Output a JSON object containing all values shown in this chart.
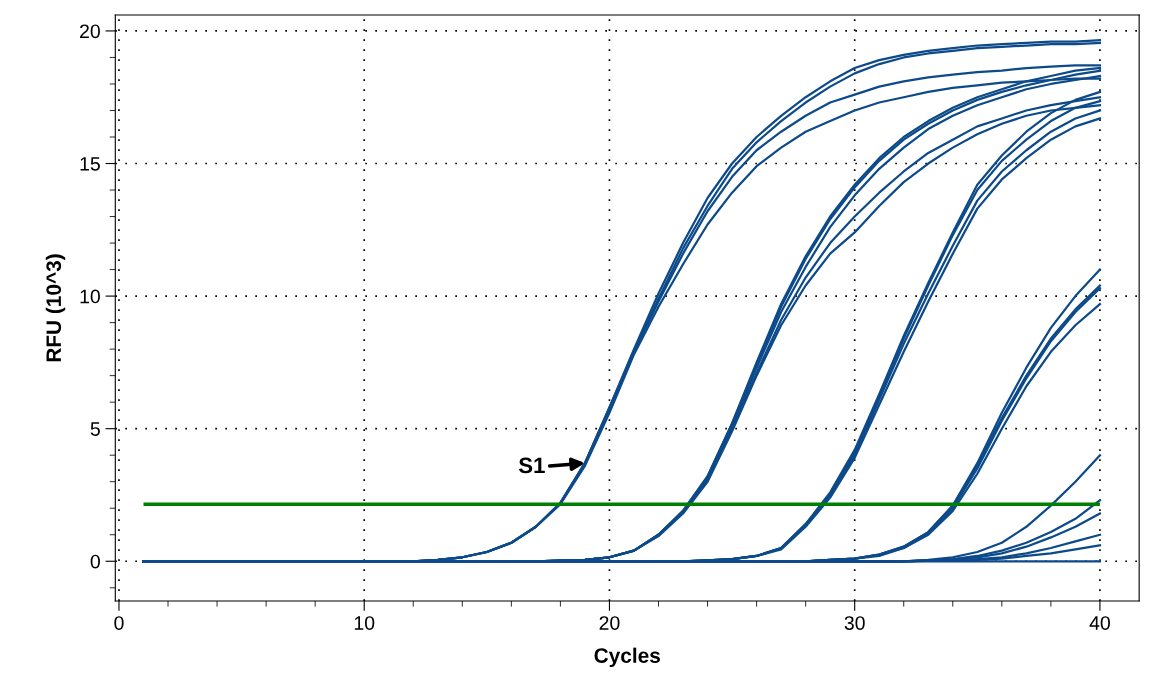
{
  "chart_data": {
    "type": "line",
    "xlabel": "Cycles",
    "ylabel": "RFU (10^3)",
    "xlim": [
      -0.15,
      41.6
    ],
    "ylim": [
      -1.5,
      20.6
    ],
    "xticks": [
      0,
      10,
      20,
      30,
      40
    ],
    "yticks": [
      0,
      5,
      10,
      15,
      20
    ],
    "grid": true,
    "legend": false,
    "marker": "none",
    "line_style": "solid",
    "series": [
      {
        "color": "#0d4a8a",
        "x": [
          1,
          12,
          13,
          14,
          15,
          16,
          17,
          18,
          19,
          20,
          21,
          22,
          23,
          24,
          25,
          26,
          27,
          28,
          29,
          30,
          31,
          32,
          33,
          34,
          35,
          36,
          37,
          38,
          39,
          40
        ],
        "values": [
          0,
          0,
          0.05,
          0.15,
          0.35,
          0.7,
          1.3,
          2.2,
          3.7,
          5.8,
          8.0,
          10.1,
          12.0,
          13.7,
          15.0,
          16.0,
          16.8,
          17.5,
          18.1,
          18.6,
          18.9,
          19.1,
          19.25,
          19.35,
          19.45,
          19.5,
          19.55,
          19.6,
          19.6,
          19.65
        ]
      },
      {
        "color": "#0d4a8a",
        "x": [
          1,
          12,
          13,
          14,
          15,
          16,
          17,
          18,
          19,
          20,
          21,
          22,
          23,
          24,
          25,
          26,
          27,
          28,
          29,
          30,
          31,
          32,
          33,
          34,
          35,
          36,
          37,
          38,
          39,
          40
        ],
        "values": [
          0,
          0,
          0.05,
          0.15,
          0.35,
          0.7,
          1.3,
          2.2,
          3.7,
          5.8,
          7.9,
          9.9,
          11.8,
          13.4,
          14.8,
          15.8,
          16.6,
          17.3,
          17.9,
          18.4,
          18.75,
          19.0,
          19.15,
          19.25,
          19.35,
          19.4,
          19.45,
          19.5,
          19.5,
          19.55
        ]
      },
      {
        "color": "#0d4a8a",
        "x": [
          1,
          12,
          13,
          14,
          15,
          16,
          17,
          18,
          19,
          20,
          21,
          22,
          23,
          24,
          25,
          26,
          27,
          28,
          29,
          30,
          31,
          32,
          33,
          34,
          35,
          36,
          37,
          38,
          39,
          40
        ],
        "values": [
          0,
          0,
          0.05,
          0.15,
          0.35,
          0.7,
          1.3,
          2.2,
          3.7,
          5.7,
          7.9,
          9.8,
          11.6,
          13.2,
          14.5,
          15.5,
          16.2,
          16.8,
          17.3,
          17.6,
          17.9,
          18.1,
          18.25,
          18.35,
          18.45,
          18.5,
          18.6,
          18.65,
          18.7,
          18.7
        ]
      },
      {
        "color": "#0d4a8a",
        "x": [
          1,
          12,
          13,
          14,
          15,
          16,
          17,
          18,
          19,
          20,
          21,
          22,
          23,
          24,
          25,
          26,
          27,
          28,
          29,
          30,
          31,
          32,
          33,
          34,
          35,
          36,
          37,
          38,
          39,
          40
        ],
        "values": [
          0,
          0,
          0.05,
          0.15,
          0.35,
          0.7,
          1.3,
          2.15,
          3.6,
          5.6,
          7.8,
          9.6,
          11.2,
          12.7,
          13.9,
          14.9,
          15.6,
          16.2,
          16.6,
          17.0,
          17.3,
          17.5,
          17.7,
          17.85,
          17.95,
          18.05,
          18.1,
          18.15,
          18.2,
          18.2
        ]
      },
      {
        "color": "#0d4a8a",
        "x": [
          1,
          17,
          18,
          19,
          20,
          21,
          22,
          23,
          24,
          25,
          26,
          27,
          28,
          29,
          30,
          31,
          32,
          33,
          34,
          35,
          36,
          37,
          38,
          39,
          40
        ],
        "values": [
          0,
          0,
          0.02,
          0.05,
          0.15,
          0.4,
          1.0,
          1.9,
          3.2,
          5.2,
          7.5,
          9.7,
          11.5,
          13.0,
          14.2,
          15.2,
          16.0,
          16.6,
          17.1,
          17.5,
          17.8,
          18.1,
          18.3,
          18.5,
          18.6
        ]
      },
      {
        "color": "#0d4a8a",
        "x": [
          1,
          17,
          18,
          19,
          20,
          21,
          22,
          23,
          24,
          25,
          26,
          27,
          28,
          29,
          30,
          31,
          32,
          33,
          34,
          35,
          36,
          37,
          38,
          39,
          40
        ],
        "values": [
          0,
          0,
          0.02,
          0.05,
          0.15,
          0.4,
          1.0,
          1.9,
          3.2,
          5.2,
          7.4,
          9.6,
          11.4,
          12.9,
          14.1,
          15.1,
          15.9,
          16.5,
          17.0,
          17.4,
          17.7,
          17.95,
          18.15,
          18.35,
          18.5
        ]
      },
      {
        "color": "#0d4a8a",
        "x": [
          1,
          17,
          18,
          19,
          20,
          21,
          22,
          23,
          24,
          25,
          26,
          27,
          28,
          29,
          30,
          31,
          32,
          33,
          34,
          35,
          36,
          37,
          38,
          39,
          40
        ],
        "values": [
          0,
          0,
          0.02,
          0.05,
          0.15,
          0.4,
          1.0,
          1.85,
          3.1,
          5.1,
          7.3,
          9.4,
          11.1,
          12.6,
          13.8,
          14.8,
          15.6,
          16.3,
          16.8,
          17.2,
          17.5,
          17.8,
          18.0,
          18.15,
          18.3
        ]
      },
      {
        "color": "#0d4a8a",
        "x": [
          1,
          17,
          18,
          19,
          20,
          21,
          22,
          23,
          24,
          25,
          26,
          27,
          28,
          29,
          30,
          31,
          32,
          33,
          34,
          35,
          36,
          37,
          38,
          39,
          40
        ],
        "values": [
          0,
          0,
          0.02,
          0.05,
          0.15,
          0.4,
          1.0,
          1.85,
          3.1,
          5.0,
          7.1,
          9.1,
          10.7,
          12.0,
          13.0,
          13.9,
          14.7,
          15.4,
          15.9,
          16.4,
          16.7,
          17.0,
          17.2,
          17.35,
          17.5
        ]
      },
      {
        "color": "#0d4a8a",
        "x": [
          1,
          17,
          18,
          19,
          20,
          21,
          22,
          23,
          24,
          25,
          26,
          27,
          28,
          29,
          30,
          31,
          32,
          33,
          34,
          35,
          36,
          37,
          38,
          39,
          40
        ],
        "values": [
          0,
          0,
          0.02,
          0.05,
          0.15,
          0.4,
          0.95,
          1.8,
          3.0,
          4.9,
          7.0,
          8.9,
          10.4,
          11.6,
          12.4,
          13.4,
          14.3,
          15.0,
          15.6,
          16.1,
          16.5,
          16.8,
          17.0,
          17.1,
          17.2
        ]
      },
      {
        "color": "#0d4a8a",
        "x": [
          1,
          23,
          24,
          25,
          26,
          27,
          28,
          29,
          30,
          31,
          32,
          33,
          34,
          35,
          36,
          37,
          38,
          39,
          40
        ],
        "values": [
          0,
          0,
          0.03,
          0.08,
          0.2,
          0.5,
          1.4,
          2.6,
          4.2,
          6.3,
          8.5,
          10.5,
          12.4,
          14.2,
          15.3,
          16.2,
          16.9,
          17.4,
          17.7
        ]
      },
      {
        "color": "#0d4a8a",
        "x": [
          1,
          23,
          24,
          25,
          26,
          27,
          28,
          29,
          30,
          31,
          32,
          33,
          34,
          35,
          36,
          37,
          38,
          39,
          40
        ],
        "values": [
          0,
          0,
          0.03,
          0.08,
          0.2,
          0.5,
          1.4,
          2.5,
          4.1,
          6.2,
          8.4,
          10.4,
          12.3,
          14.0,
          15.1,
          15.9,
          16.6,
          17.1,
          17.35
        ]
      },
      {
        "color": "#0d4a8a",
        "x": [
          1,
          23,
          24,
          25,
          26,
          27,
          28,
          29,
          30,
          31,
          32,
          33,
          34,
          35,
          36,
          37,
          38,
          39,
          40
        ],
        "values": [
          0,
          0,
          0.03,
          0.08,
          0.2,
          0.5,
          1.35,
          2.5,
          4.0,
          6.1,
          8.2,
          10.1,
          11.9,
          13.6,
          14.7,
          15.5,
          16.2,
          16.7,
          17.0
        ]
      },
      {
        "color": "#0d4a8a",
        "x": [
          1,
          23,
          24,
          25,
          26,
          27,
          28,
          29,
          30,
          31,
          32,
          33,
          34,
          35,
          36,
          37,
          38,
          39,
          40
        ],
        "values": [
          0,
          0,
          0.03,
          0.08,
          0.2,
          0.45,
          1.3,
          2.4,
          3.9,
          5.9,
          7.9,
          9.8,
          11.6,
          13.3,
          14.4,
          15.2,
          15.9,
          16.4,
          16.7
        ]
      },
      {
        "color": "#0d4a8a",
        "x": [
          1,
          28,
          29,
          30,
          31,
          32,
          33,
          34,
          35,
          36,
          37,
          38,
          39,
          40
        ],
        "values": [
          0,
          0,
          0.05,
          0.1,
          0.25,
          0.55,
          1.1,
          2.1,
          3.7,
          5.6,
          7.3,
          8.8,
          10.0,
          11.0
        ]
      },
      {
        "color": "#0d4a8a",
        "x": [
          1,
          28,
          29,
          30,
          31,
          32,
          33,
          34,
          35,
          36,
          37,
          38,
          39,
          40
        ],
        "values": [
          0,
          0,
          0.05,
          0.1,
          0.25,
          0.55,
          1.1,
          2.1,
          3.6,
          5.4,
          7.0,
          8.4,
          9.5,
          10.4
        ]
      },
      {
        "color": "#0d4a8a",
        "x": [
          1,
          28,
          29,
          30,
          31,
          32,
          33,
          34,
          35,
          36,
          37,
          38,
          39,
          40
        ],
        "values": [
          0,
          0,
          0.05,
          0.1,
          0.25,
          0.5,
          1.05,
          2.0,
          3.5,
          5.3,
          6.9,
          8.3,
          9.4,
          10.3
        ]
      },
      {
        "color": "#0d4a8a",
        "x": [
          1,
          28,
          29,
          30,
          31,
          32,
          33,
          34,
          35,
          36,
          37,
          38,
          39,
          40
        ],
        "values": [
          0,
          0,
          0.05,
          0.1,
          0.2,
          0.5,
          1.0,
          1.9,
          3.3,
          5.0,
          6.6,
          7.9,
          8.9,
          9.7
        ]
      },
      {
        "color": "#0d4a8a",
        "x": [
          1,
          32,
          33,
          34,
          35,
          36,
          37,
          38,
          39,
          40
        ],
        "values": [
          0,
          0,
          0.05,
          0.15,
          0.35,
          0.7,
          1.3,
          2.1,
          3.0,
          4.0
        ]
      },
      {
        "color": "#0d4a8a",
        "x": [
          1,
          32,
          33,
          34,
          35,
          36,
          37,
          38,
          39,
          40
        ],
        "values": [
          0,
          0,
          0.03,
          0.08,
          0.2,
          0.4,
          0.7,
          1.1,
          1.6,
          2.3
        ]
      },
      {
        "color": "#0d4a8a",
        "x": [
          1,
          32,
          33,
          34,
          35,
          36,
          37,
          38,
          39,
          40
        ],
        "values": [
          0,
          0,
          0.03,
          0.07,
          0.15,
          0.3,
          0.55,
          0.9,
          1.3,
          1.8
        ]
      },
      {
        "color": "#0d4a8a",
        "x": [
          1,
          32,
          33,
          34,
          35,
          36,
          37,
          38,
          39,
          40
        ],
        "values": [
          0,
          0,
          0.02,
          0.04,
          0.08,
          0.15,
          0.3,
          0.5,
          0.75,
          1.0
        ]
      },
      {
        "color": "#0d4a8a",
        "x": [
          1,
          32,
          33,
          34,
          35,
          36,
          37,
          38,
          39,
          40
        ],
        "values": [
          0,
          0,
          0.01,
          0.02,
          0.05,
          0.1,
          0.2,
          0.3,
          0.45,
          0.6
        ]
      },
      {
        "color": "#0d4a8a",
        "x": [
          1,
          40
        ],
        "values": [
          0,
          0
        ]
      }
    ],
    "ref_lines": [
      {
        "axis": "y",
        "value": 2.15,
        "color": "#008000",
        "line_style": "solid"
      }
    ],
    "annotations": [
      {
        "text": "S1",
        "x": 19,
        "y": 3.7
      }
    ]
  }
}
